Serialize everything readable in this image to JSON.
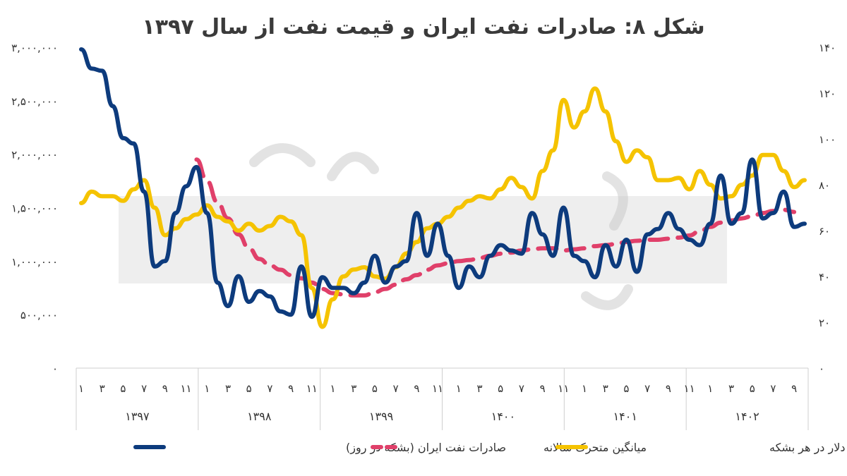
{
  "chart_data": {
    "type": "line",
    "title": "شکل ۸: صادرات نفت ایران و قیمت نفت از سال ۱۳۹۷",
    "left_axis": {
      "ylim": [
        0,
        3000000
      ],
      "ticks": [
        0,
        500000,
        1000000,
        1500000,
        2000000,
        2500000,
        3000000
      ],
      "tick_labels": [
        "۰",
        "۵۰۰,۰۰۰",
        "۱,۰۰۰,۰۰۰",
        "۱,۵۰۰,۰۰۰",
        "۲,۰۰۰,۰۰۰",
        "۲,۵۰۰,۰۰۰",
        "۳,۰۰۰,۰۰۰"
      ]
    },
    "right_axis": {
      "ylim": [
        0,
        140
      ],
      "ticks": [
        0,
        20,
        40,
        60,
        80,
        100,
        120,
        140
      ],
      "tick_labels": [
        "۰",
        "۲۰",
        "۴۰",
        "۶۰",
        "۸۰",
        "۱۰۰",
        "۱۲۰",
        "۱۴۰"
      ]
    },
    "month_labels": [
      "۱",
      "۳",
      "۵",
      "۷",
      "۹",
      "۱۱"
    ],
    "years": [
      "۱۳۹۷",
      "۱۳۹۸",
      "۱۳۹۹",
      "۱۴۰۰",
      "۱۴۰۱",
      "۱۴۰۲"
    ],
    "legend": [
      "صادرات نفت ایران (بشکه در روز)",
      "میانگین متحرک سالانه",
      "قیمت نفت برنت - دلار در هر بشکه"
    ],
    "series": [
      {
        "name": "صادرات نفت ایران (بشکه در روز)",
        "axis": "left",
        "color": "#0d3b7d",
        "values": [
          2980000,
          2800000,
          2780000,
          2450000,
          2150000,
          2100000,
          1650000,
          950000,
          1000000,
          1450000,
          1700000,
          1880000,
          1450000,
          800000,
          580000,
          860000,
          620000,
          720000,
          670000,
          530000,
          500000,
          950000,
          480000,
          850000,
          750000,
          750000,
          700000,
          800000,
          1050000,
          800000,
          950000,
          1000000,
          1450000,
          1050000,
          1350000,
          1050000,
          750000,
          950000,
          850000,
          1050000,
          1150000,
          1100000,
          1070000,
          1450000,
          1250000,
          1050000,
          1500000,
          1050000,
          1000000,
          850000,
          1150000,
          950000,
          1200000,
          900000,
          1250000,
          1300000,
          1450000,
          1300000,
          1200000,
          1150000,
          1350000,
          1800000,
          1350000,
          1450000,
          1950000,
          1400000,
          1450000,
          1650000,
          1320000,
          1350000
        ]
      },
      {
        "name": "میانگین متحرک سالانه",
        "axis": "left",
        "color": "#e0406a",
        "start_index": 11,
        "values": [
          1950000,
          1750000,
          1550000,
          1400000,
          1250000,
          1120000,
          1020000,
          960000,
          920000,
          870000,
          840000,
          800000,
          740000,
          700000,
          690000,
          680000,
          680000,
          710000,
          740000,
          780000,
          830000,
          870000,
          920000,
          960000,
          980000,
          1000000,
          1010000,
          1030000,
          1050000,
          1070000,
          1080000,
          1100000,
          1110000,
          1120000,
          1120000,
          1100000,
          1110000,
          1120000,
          1140000,
          1150000,
          1160000,
          1180000,
          1190000,
          1200000,
          1200000,
          1210000,
          1220000,
          1240000,
          1280000,
          1320000,
          1360000,
          1380000,
          1400000,
          1420000,
          1450000,
          1470000,
          1480000,
          1460000
        ]
      },
      {
        "name": "قیمت نفت برنت - دلار در هر بشکه",
        "axis": "right",
        "color": "#f5c300",
        "values": [
          72,
          77,
          75,
          75,
          73,
          78,
          82,
          70,
          58,
          61,
          65,
          67,
          71,
          66,
          64,
          60,
          63,
          60,
          62,
          66,
          64,
          58,
          35,
          18,
          30,
          40,
          43,
          44,
          40,
          39,
          44,
          50,
          55,
          61,
          63,
          66,
          70,
          73,
          75,
          74,
          78,
          83,
          79,
          74,
          86,
          95,
          117,
          105,
          112,
          122,
          112,
          99,
          90,
          95,
          92,
          82,
          82,
          83,
          78,
          86,
          80,
          74,
          75,
          80,
          84,
          93,
          93,
          86,
          79,
          82
        ]
      }
    ]
  }
}
